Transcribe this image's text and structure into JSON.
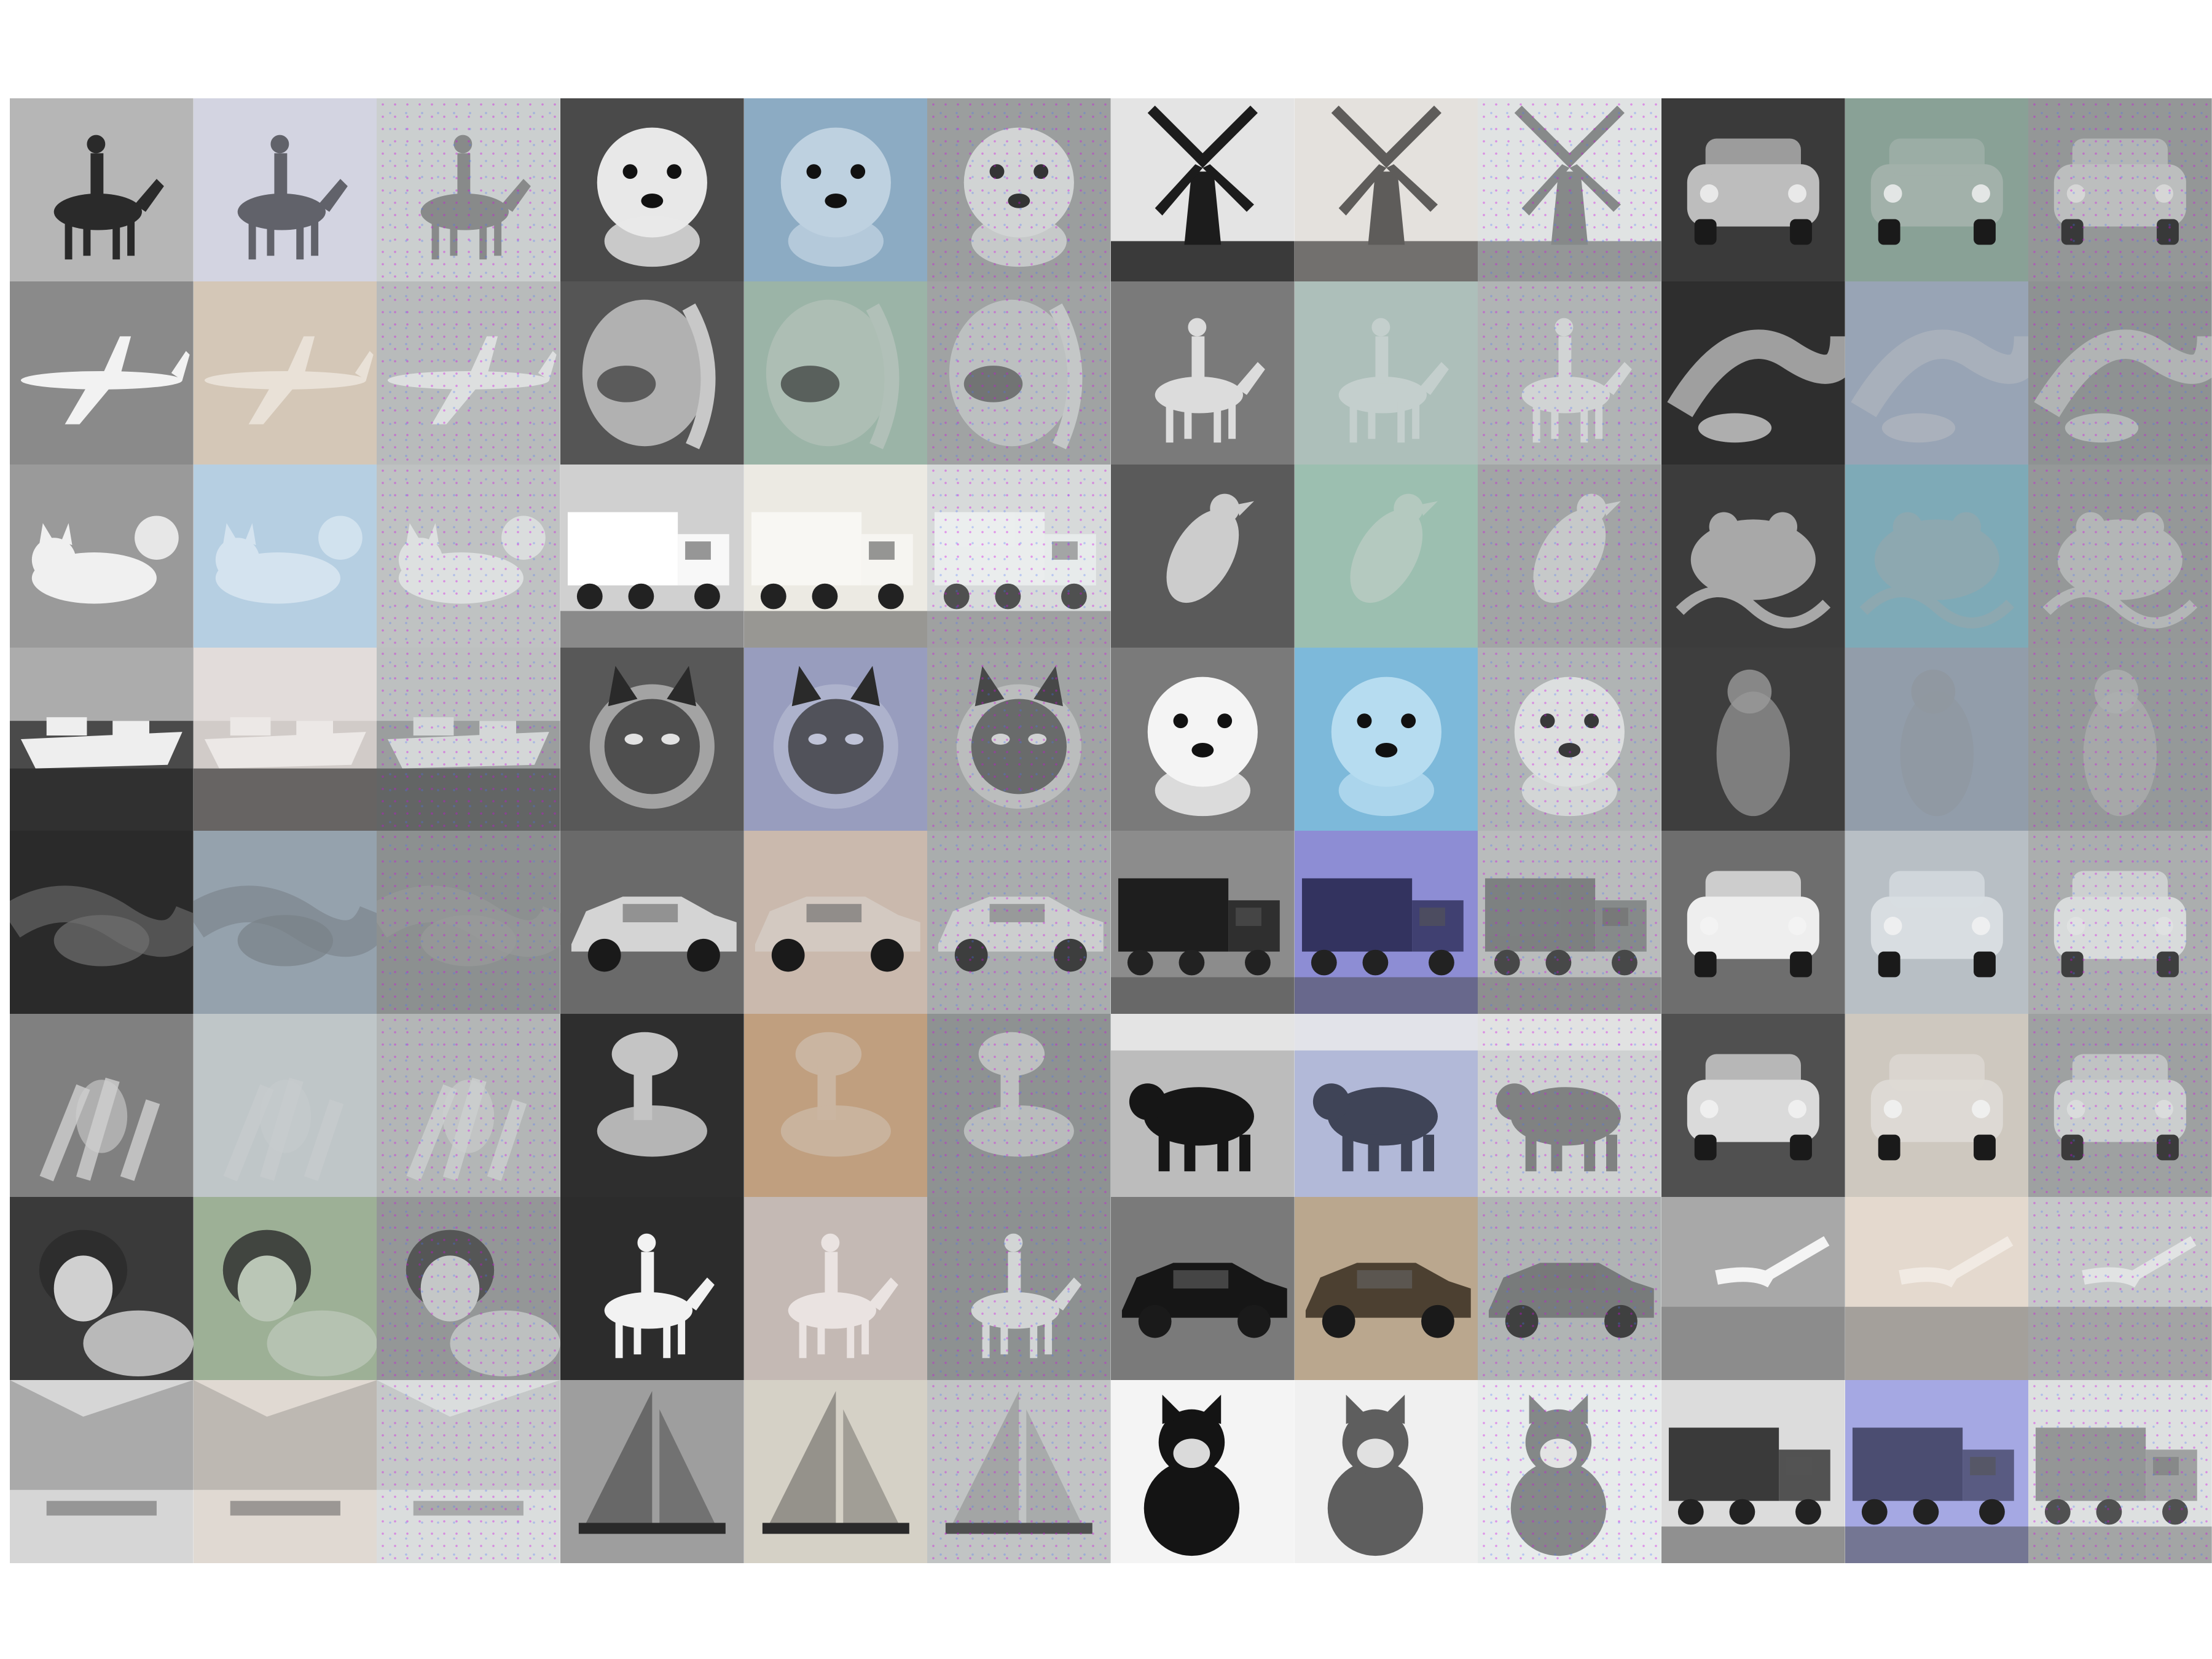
{
  "grid": {
    "rows": 8,
    "groups_per_row": 4,
    "variants_per_group": [
      "grayscale",
      "colorized",
      "reconstruction-with-artifacts"
    ],
    "cells": [
      {
        "subject": "horse-rider",
        "palette": {
          "bg": "#b6b6b6",
          "fg": "#2a2a2a",
          "tint": "#c8cbe2"
        }
      },
      {
        "subject": "dog-face",
        "palette": {
          "bg": "#4a4a4a",
          "fg": "#e8e8e8",
          "tint": "#6fa6d0"
        }
      },
      {
        "subject": "windmill",
        "palette": {
          "bg": "#e4e4e4",
          "fg": "#1c1c1c",
          "tint": "#d8d2cc"
        }
      },
      {
        "subject": "car-front",
        "palette": {
          "bg": "#3a3a3a",
          "fg": "#bdbdbd",
          "tint": "#6f9a86"
        }
      },
      {
        "subject": "airplane",
        "palette": {
          "bg": "#8a8a8a",
          "fg": "#f2f2f2",
          "tint": "#d8c2a6"
        }
      },
      {
        "subject": "animal-closeup",
        "palette": {
          "bg": "#555555",
          "fg": "#c8c8c8",
          "tint": "#86b29a"
        }
      },
      {
        "subject": "horse-rider",
        "palette": {
          "bg": "#7a7a7a",
          "fg": "#dcdcdc",
          "tint": "#98b8b0"
        }
      },
      {
        "subject": "abstract-curve",
        "palette": {
          "bg": "#2e2e2e",
          "fg": "#bcbcbc",
          "tint": "#8ea2c0"
        }
      },
      {
        "subject": "cat-lying",
        "palette": {
          "bg": "#9a9a9a",
          "fg": "#f0f0f0",
          "tint": "#9fcbec"
        }
      },
      {
        "subject": "truck",
        "palette": {
          "bg": "#d0d0d0",
          "fg": "#ffffff",
          "tint": "#ece9dc"
        }
      },
      {
        "subject": "bird",
        "palette": {
          "bg": "#5a5a5a",
          "fg": "#cccccc",
          "tint": "#86c4a8"
        }
      },
      {
        "subject": "frog",
        "palette": {
          "bg": "#3c3c3c",
          "fg": "#a8a8a8",
          "tint": "#5aa8c0"
        }
      },
      {
        "subject": "ship",
        "palette": {
          "bg": "#4a4a4a",
          "fg": "#eeeeee",
          "tint": "#e8ded8"
        }
      },
      {
        "subject": "cat-face",
        "palette": {
          "bg": "#585858",
          "fg": "#e2e2e2",
          "tint": "#7e88c2"
        }
      },
      {
        "subject": "dog-face",
        "palette": {
          "bg": "#7a7a7a",
          "fg": "#f4f4f4",
          "tint": "#44aee8"
        }
      },
      {
        "subject": "cat-dark",
        "palette": {
          "bg": "#3e3e3e",
          "fg": "#9a9a9a",
          "tint": "#7c90a8"
        }
      },
      {
        "subject": "deer-dark",
        "palette": {
          "bg": "#2a2a2a",
          "fg": "#707070",
          "tint": "#8aa0b4"
        }
      },
      {
        "subject": "car-side",
        "palette": {
          "bg": "#6a6a6a",
          "fg": "#d4d4d4",
          "tint": "#d2b49e"
        }
      },
      {
        "subject": "truck",
        "palette": {
          "bg": "#8c8c8c",
          "fg": "#1e1e1e",
          "tint": "#5a5ad8"
        }
      },
      {
        "subject": "car-front",
        "palette": {
          "bg": "#6e6e6e",
          "fg": "#eeeeee",
          "tint": "#b0bcc8"
        }
      },
      {
        "subject": "bird-grass",
        "palette": {
          "bg": "#808080",
          "fg": "#cfcfcf",
          "tint": "#b8c4c8"
        }
      },
      {
        "subject": "ostrich",
        "palette": {
          "bg": "#2e2e2e",
          "fg": "#c4c4c4",
          "tint": "#d49a60"
        }
      },
      {
        "subject": "bull",
        "palette": {
          "bg": "#bcbcbc",
          "fg": "#161616",
          "tint": "#8c98d0"
        }
      },
      {
        "subject": "car-front",
        "palette": {
          "bg": "#505050",
          "fg": "#dadada",
          "tint": "#e2d6c8"
        }
      },
      {
        "subject": "dog-person",
        "palette": {
          "bg": "#3a3a3a",
          "fg": "#d0d0d0",
          "tint": "#92b486"
        }
      },
      {
        "subject": "horse-rider",
        "palette": {
          "bg": "#2c2c2c",
          "fg": "#f2f2f2",
          "tint": "#dcc8c0"
        }
      },
      {
        "subject": "car-side",
        "palette": {
          "bg": "#7a7a7a",
          "fg": "#161616",
          "tint": "#b08e62"
        }
      },
      {
        "subject": "bird-flying",
        "palette": {
          "bg": "#a8a8a8",
          "fg": "#f4f4f4",
          "tint": "#ecd8c4"
        }
      },
      {
        "subject": "abstract-light",
        "palette": {
          "bg": "#d6d6d6",
          "fg": "#8c8c8c",
          "tint": "#d4c8bc"
        }
      },
      {
        "subject": "sailboat",
        "palette": {
          "bg": "#9e9e9e",
          "fg": "#5a5a5a",
          "tint": "#d4ccba"
        }
      },
      {
        "subject": "cat-sitting",
        "palette": {
          "bg": "#f4f4f4",
          "fg": "#141414",
          "tint": "#e8e8e8"
        }
      },
      {
        "subject": "truck",
        "palette": {
          "bg": "#dcdcdc",
          "fg": "#3a3a3a",
          "tint": "#6a70d8"
        }
      }
    ]
  }
}
